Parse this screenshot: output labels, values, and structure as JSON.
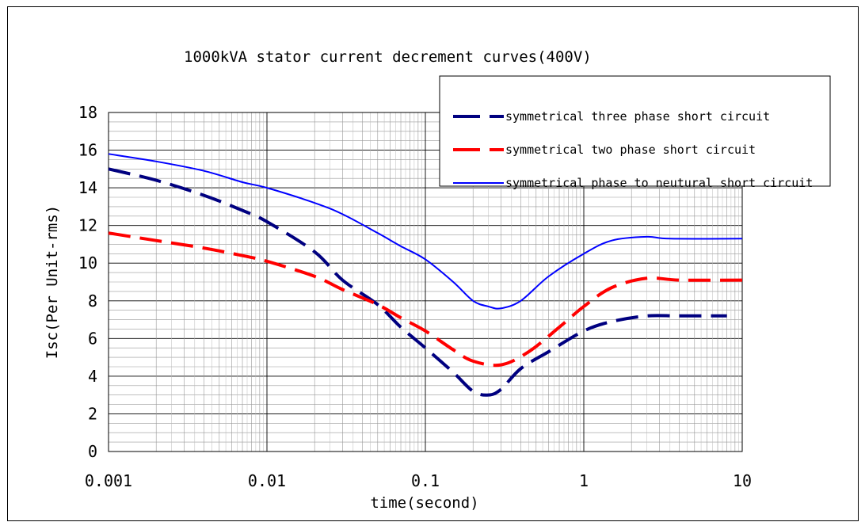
{
  "chart_data": {
    "type": "line",
    "title": "1000kVA stator current decrement curves(400V)",
    "xlabel": "time(second)",
    "ylabel": "Isc(Per Unit-rms)",
    "xscale": "log",
    "xlim": [
      0.001,
      10
    ],
    "ylim": [
      0,
      18
    ],
    "x_ticks": [
      "0.001",
      "0.01",
      "0.1",
      "1",
      "10"
    ],
    "y_ticks": [
      "0",
      "2",
      "4",
      "6",
      "8",
      "10",
      "12",
      "14",
      "16",
      "18"
    ],
    "grid": true,
    "legend_position": "top-right",
    "series": [
      {
        "name": "symmetrical three phase short circuit",
        "color": "#000080",
        "dash": "long-dash",
        "x": [
          0.001,
          0.002,
          0.004,
          0.007,
          0.01,
          0.02,
          0.03,
          0.05,
          0.07,
          0.1,
          0.15,
          0.2,
          0.25,
          0.3,
          0.4,
          0.6,
          1.0,
          1.5,
          2.5,
          4,
          8
        ],
        "y": [
          15.0,
          14.4,
          13.6,
          12.8,
          12.2,
          10.6,
          9.1,
          7.8,
          6.6,
          5.5,
          4.2,
          3.2,
          3.0,
          3.3,
          4.4,
          5.3,
          6.4,
          6.9,
          7.2,
          7.2,
          7.2
        ]
      },
      {
        "name": "symmetrical two phase short circuit",
        "color": "#ff0000",
        "dash": "long-dash",
        "x": [
          0.001,
          0.002,
          0.004,
          0.007,
          0.01,
          0.02,
          0.03,
          0.05,
          0.07,
          0.1,
          0.15,
          0.2,
          0.3,
          0.45,
          0.7,
          1.0,
          1.5,
          2.5,
          4,
          10
        ],
        "y": [
          11.6,
          11.2,
          10.8,
          10.4,
          10.1,
          9.3,
          8.6,
          7.8,
          7.1,
          6.4,
          5.4,
          4.8,
          4.6,
          5.3,
          6.6,
          7.7,
          8.7,
          9.2,
          9.1,
          9.1
        ]
      },
      {
        "name": "symmetrical phase to neutural short circuit",
        "color": "#0000ff",
        "dash": "solid",
        "x": [
          0.001,
          0.002,
          0.004,
          0.007,
          0.01,
          0.02,
          0.03,
          0.05,
          0.07,
          0.1,
          0.15,
          0.2,
          0.25,
          0.3,
          0.4,
          0.6,
          1.0,
          1.5,
          2.5,
          3.5,
          10
        ],
        "y": [
          15.8,
          15.4,
          14.9,
          14.3,
          14.0,
          13.2,
          12.6,
          11.6,
          10.9,
          10.2,
          9.0,
          8.0,
          7.7,
          7.6,
          8.0,
          9.3,
          10.5,
          11.2,
          11.4,
          11.3,
          11.3
        ]
      }
    ]
  }
}
